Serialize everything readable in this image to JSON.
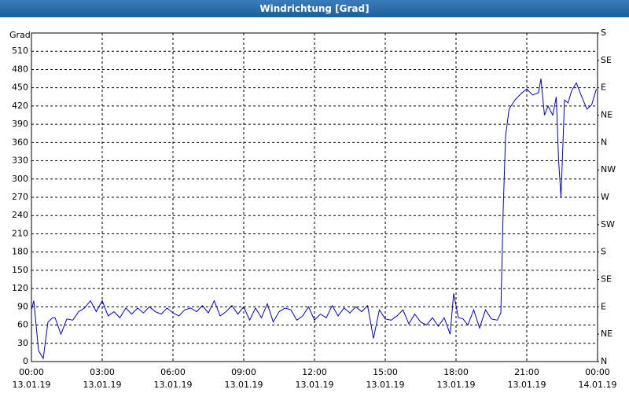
{
  "chart_data": {
    "type": "line",
    "title": "Windrichtung [Grad]",
    "ylabel": "Grad",
    "xlim": [
      0,
      24
    ],
    "xticks": [
      {
        "value": 0,
        "label": "00:00"
      },
      {
        "value": 3,
        "label": "03:00"
      },
      {
        "value": 6,
        "label": "06:00"
      },
      {
        "value": 9,
        "label": "09:00"
      },
      {
        "value": 12,
        "label": "12:00"
      },
      {
        "value": 15,
        "label": "15:00"
      },
      {
        "value": 18,
        "label": "18:00"
      },
      {
        "value": 21,
        "label": "21:00"
      },
      {
        "value": 24,
        "label": "00:00"
      }
    ],
    "xtick_dates": [
      "13.01.19",
      "13.01.19",
      "13.01.19",
      "13.01.19",
      "13.01.19",
      "13.01.19",
      "13.01.19",
      "13.01.19",
      "14.01.19"
    ],
    "ylim": [
      0,
      540
    ],
    "yticks": [
      0,
      30,
      60,
      90,
      120,
      150,
      180,
      210,
      240,
      270,
      300,
      330,
      360,
      390,
      420,
      450,
      480,
      510
    ],
    "y2lim": [
      0,
      540
    ],
    "y2ticks": [
      {
        "value": 0,
        "label": "N"
      },
      {
        "value": 45,
        "label": "NE"
      },
      {
        "value": 90,
        "label": "E"
      },
      {
        "value": 135,
        "label": "SE"
      },
      {
        "value": 180,
        "label": "S"
      },
      {
        "value": 225,
        "label": "SW"
      },
      {
        "value": 270,
        "label": "W"
      },
      {
        "value": 315,
        "label": "NW"
      },
      {
        "value": 360,
        "label": "N"
      },
      {
        "value": 405,
        "label": "NE"
      },
      {
        "value": 450,
        "label": "E"
      },
      {
        "value": 495,
        "label": "SE"
      },
      {
        "value": 540,
        "label": "S"
      }
    ],
    "grid": true,
    "series": [
      {
        "color": "#0000cc",
        "x": [
          0,
          0.1,
          0.3,
          0.5,
          0.7,
          0.9,
          1.0,
          1.25,
          1.5,
          1.75,
          2.0,
          2.25,
          2.5,
          2.75,
          3.0,
          3.25,
          3.5,
          3.75,
          4.0,
          4.25,
          4.5,
          4.75,
          5.0,
          5.25,
          5.5,
          5.75,
          6.0,
          6.25,
          6.5,
          6.75,
          7.0,
          7.25,
          7.5,
          7.75,
          8.0,
          8.25,
          8.5,
          8.75,
          9.0,
          9.25,
          9.5,
          9.75,
          10.0,
          10.25,
          10.5,
          10.75,
          11.0,
          11.25,
          11.5,
          11.75,
          12.0,
          12.25,
          12.5,
          12.75,
          13.0,
          13.25,
          13.5,
          13.75,
          14.0,
          14.25,
          14.5,
          14.75,
          15.0,
          15.25,
          15.5,
          15.75,
          16.0,
          16.25,
          16.5,
          16.75,
          17.0,
          17.25,
          17.5,
          17.75,
          17.9,
          18.1,
          18.3,
          18.5,
          18.75,
          19.0,
          19.25,
          19.5,
          19.75,
          19.9,
          20.0,
          20.1,
          20.25,
          20.5,
          20.75,
          21.0,
          21.25,
          21.5,
          21.6,
          21.75,
          21.9,
          22.1,
          22.25,
          22.35,
          22.45,
          22.6,
          22.75,
          22.9,
          23.1,
          23.3,
          23.55,
          23.75,
          23.95
        ],
        "values": [
          85,
          100,
          18,
          5,
          65,
          72,
          72,
          45,
          70,
          68,
          82,
          88,
          100,
          82,
          100,
          75,
          82,
          72,
          88,
          78,
          88,
          80,
          90,
          82,
          78,
          88,
          80,
          75,
          85,
          88,
          82,
          92,
          80,
          100,
          75,
          82,
          92,
          78,
          90,
          68,
          88,
          72,
          95,
          65,
          82,
          88,
          85,
          68,
          75,
          90,
          68,
          78,
          72,
          92,
          75,
          88,
          80,
          90,
          82,
          92,
          38,
          85,
          70,
          68,
          75,
          85,
          62,
          78,
          65,
          60,
          72,
          58,
          72,
          45,
          112,
          72,
          70,
          60,
          85,
          55,
          85,
          70,
          68,
          80,
          250,
          370,
          415,
          430,
          440,
          448,
          438,
          442,
          465,
          405,
          420,
          405,
          435,
          330,
          270,
          430,
          425,
          445,
          458,
          438,
          415,
          422,
          448
        ]
      }
    ]
  }
}
